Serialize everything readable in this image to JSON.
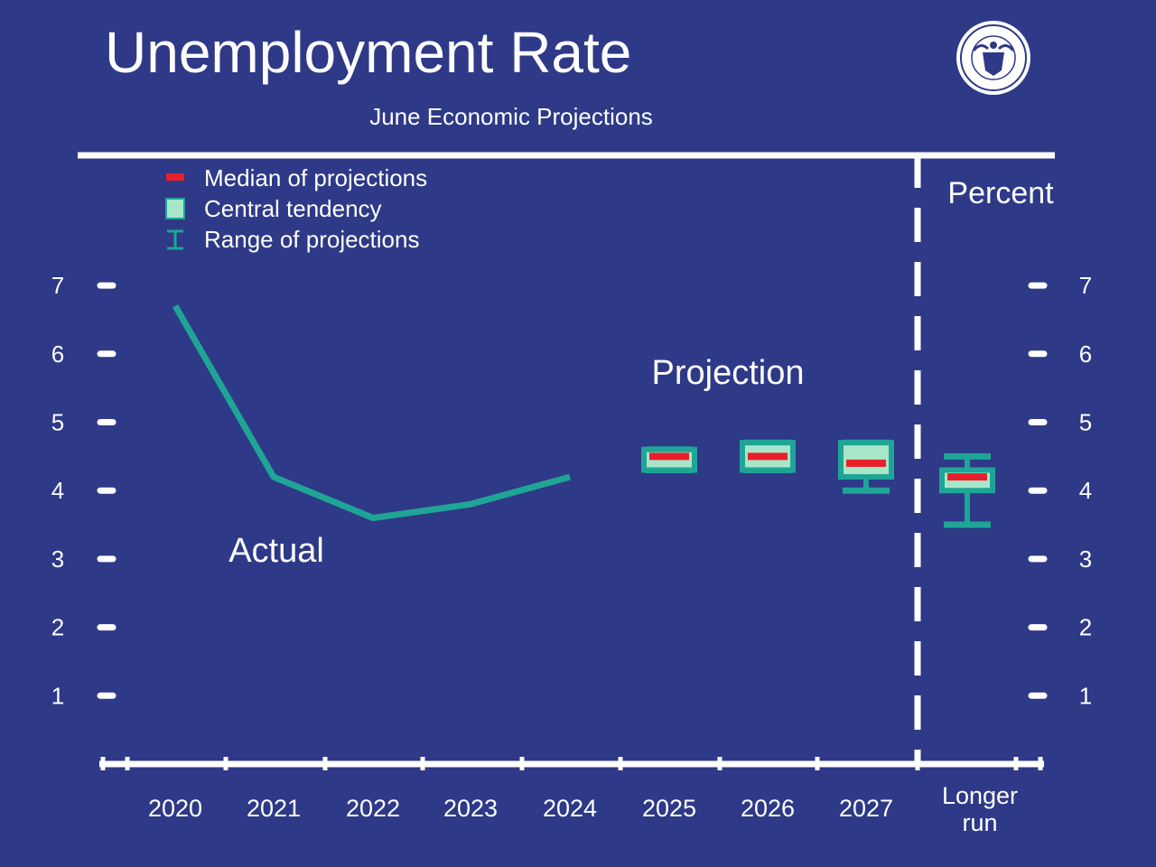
{
  "colors": {
    "background": "#2e3987",
    "series": "#1fa596",
    "central_tendency": "#a8e6c9",
    "median": "#e8202a",
    "axis": "#ffffff"
  },
  "seal_icon": "federal-reserve-seal-icon",
  "chart_data": {
    "type": "line",
    "title": "Unemployment Rate",
    "subtitle": "June Economic Projections",
    "ylabel": "Percent",
    "ylim": [
      0,
      7
    ],
    "yticks": [
      "1",
      "2",
      "3",
      "4",
      "5",
      "6",
      "7"
    ],
    "categories": [
      "2020",
      "2021",
      "2022",
      "2023",
      "2024",
      "2025",
      "2026",
      "2027",
      "Longer run"
    ],
    "longer_run_label": [
      "Longer",
      "run"
    ],
    "legend": [
      {
        "kind": "median",
        "label": "Median of projections"
      },
      {
        "kind": "central",
        "label": "Central tendency"
      },
      {
        "kind": "range",
        "label": "Range of projections"
      }
    ],
    "annotations": {
      "actual": "Actual",
      "projection": "Projection"
    },
    "actual": {
      "x": [
        "2020",
        "2021",
        "2022",
        "2023",
        "2024"
      ],
      "values": [
        6.7,
        4.2,
        3.6,
        3.8,
        4.2
      ]
    },
    "projections": [
      {
        "x": "2025",
        "median": 4.5,
        "central_low": 4.3,
        "central_high": 4.6,
        "range_low": 4.3,
        "range_high": 4.6
      },
      {
        "x": "2026",
        "median": 4.5,
        "central_low": 4.3,
        "central_high": 4.7,
        "range_low": 4.3,
        "range_high": 4.7
      },
      {
        "x": "2027",
        "median": 4.4,
        "central_low": 4.2,
        "central_high": 4.7,
        "range_low": 4.0,
        "range_high": 4.7
      },
      {
        "x": "Longer run",
        "median": 4.2,
        "central_low": 4.0,
        "central_high": 4.3,
        "range_low": 3.5,
        "range_high": 4.5
      }
    ]
  }
}
